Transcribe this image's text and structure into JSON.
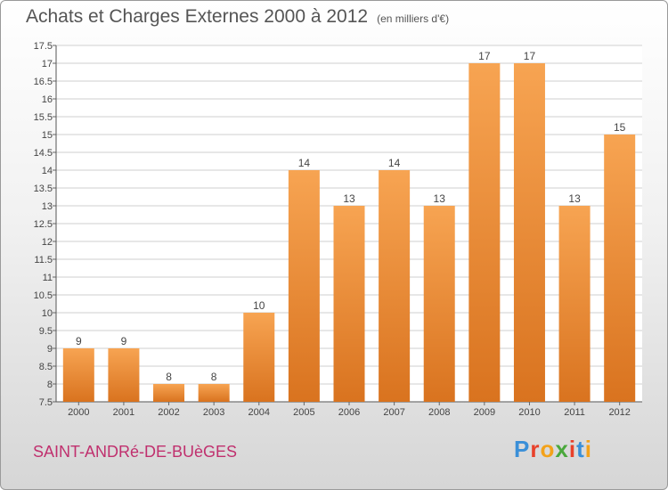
{
  "header": {
    "title": "Achats et Charges Externes 2000 à 2012",
    "unit": "(en milliers d'€)"
  },
  "footer": {
    "commune": "SAINT-ANDRé-DE-BUèGES",
    "brand_letters": [
      "P",
      "r",
      "o",
      "x",
      "i",
      "t",
      "i"
    ],
    "brand_colors": [
      "#3a8fd8",
      "#e8412b",
      "#f3a21a",
      "#4aa83c",
      "#e8412b",
      "#3a8fd8",
      "#f3a21a"
    ]
  },
  "chart_data": {
    "type": "bar",
    "categories": [
      "2000",
      "2001",
      "2002",
      "2003",
      "2004",
      "2005",
      "2006",
      "2007",
      "2008",
      "2009",
      "2010",
      "2011",
      "2012"
    ],
    "values": [
      9,
      9,
      8,
      8,
      10,
      14,
      13,
      14,
      13,
      17,
      17,
      13,
      15
    ],
    "data_labels": [
      "9",
      "9",
      "8",
      "8",
      "10",
      "14",
      "13",
      "14",
      "13",
      "17",
      "17",
      "13",
      "15"
    ],
    "ylim": [
      7.5,
      17.5
    ],
    "yticks": [
      7.5,
      8,
      8.5,
      9,
      9.5,
      10,
      10.5,
      11,
      11.5,
      12,
      12.5,
      13,
      13.5,
      14,
      14.5,
      15,
      15.5,
      16,
      16.5,
      17,
      17.5
    ],
    "ytick_labels": [
      "7.5",
      "8",
      "8.5",
      "9",
      "9.5",
      "10",
      "10.5",
      "11",
      "11.5",
      "12",
      "12.5",
      "13",
      "13.5",
      "14",
      "14.5",
      "15",
      "15.5",
      "16",
      "16.5",
      "17",
      "17.5"
    ],
    "grid": true,
    "bar_color_top": "#f7a452",
    "bar_color_bottom": "#d9731f",
    "xlabel": "",
    "ylabel": ""
  }
}
